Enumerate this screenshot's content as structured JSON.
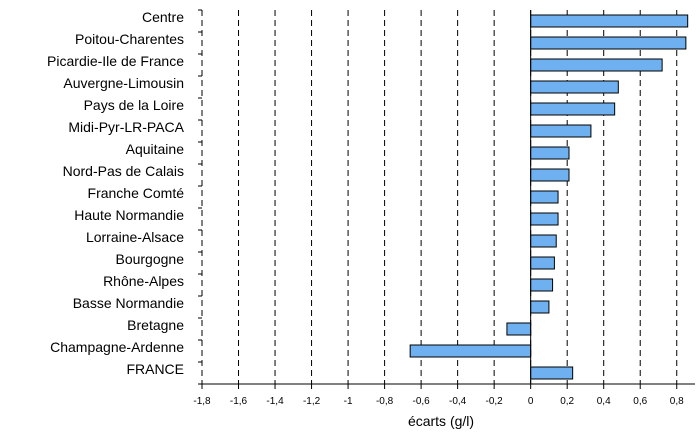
{
  "chart_data": {
    "type": "bar",
    "orientation": "horizontal",
    "categories": [
      "Centre",
      "Poitou-Charentes",
      "Picardie-Ile de France",
      "Auvergne-Limousin",
      "Pays de la Loire",
      "Midi-Pyr-LR-PACA",
      "Aquitaine",
      "Nord-Pas de Calais",
      "Franche Comté",
      "Haute Normandie",
      "Lorraine-Alsace",
      "Bourgogne",
      "Rhône-Alpes",
      "Basse Normandie",
      "Bretagne",
      "Champagne-Ardenne",
      "FRANCE"
    ],
    "values": [
      0.86,
      0.85,
      0.72,
      0.48,
      0.46,
      0.33,
      0.21,
      0.21,
      0.15,
      0.15,
      0.14,
      0.13,
      0.12,
      0.1,
      -0.13,
      -0.66,
      0.23
    ],
    "xlabel": "écarts (g/l)",
    "xlim": [
      -1.8,
      0.9
    ],
    "xticks": [
      "-1,8",
      "-1,6",
      "-1,4",
      "-1,2",
      "-1",
      "-0,8",
      "-0,6",
      "-0,4",
      "-0,2",
      "0",
      "0,2",
      "0,4",
      "0,6",
      "0,8"
    ],
    "grid": "vertical dashed",
    "bar_color": "#6fb1f0"
  }
}
